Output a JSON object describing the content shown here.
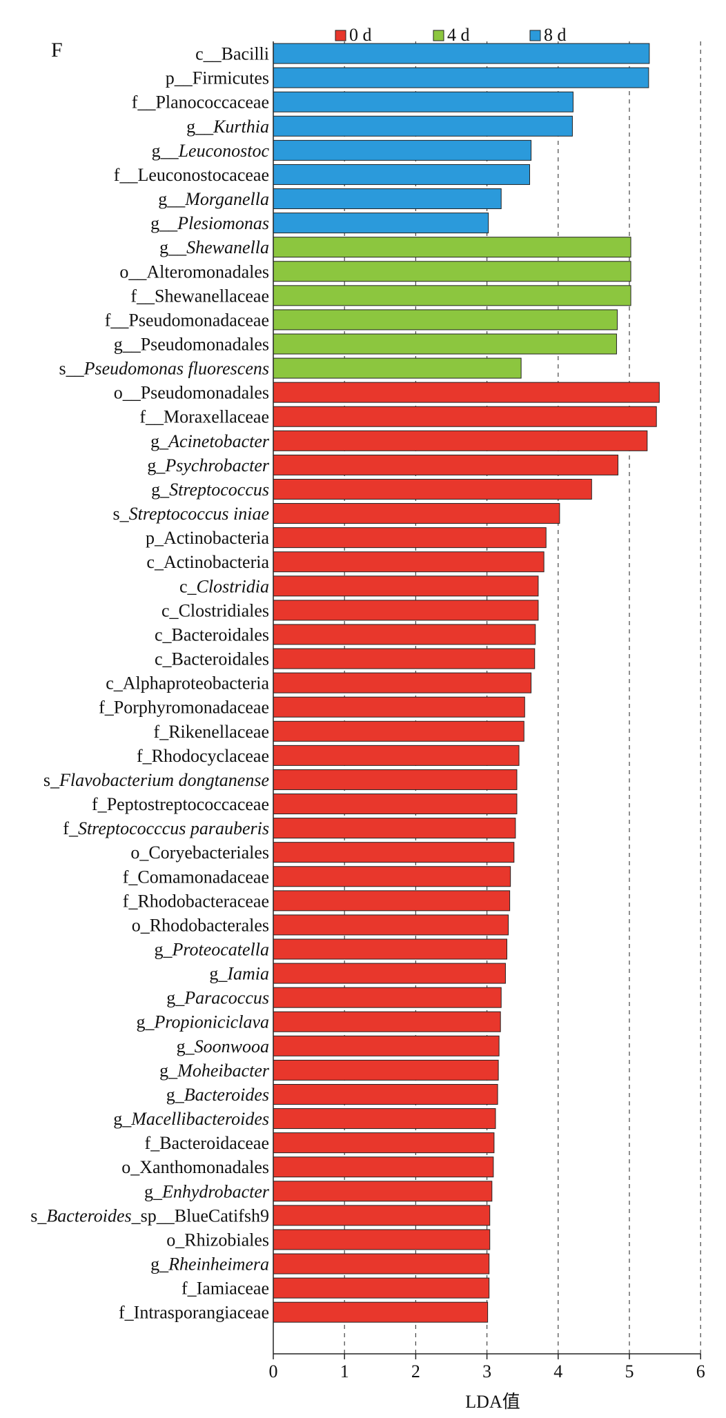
{
  "chart_data": {
    "type": "bar",
    "orientation": "horizontal",
    "panel_label": "F",
    "xlabel": "LDA值",
    "ylabel": "",
    "xlim": [
      0,
      6
    ],
    "xticks": [
      0,
      1,
      2,
      3,
      4,
      5,
      6
    ],
    "grid": "dashed vertical lines at x = 1..6",
    "legend": {
      "position": "top",
      "entries": [
        {
          "group": "0d",
          "label": "0 d",
          "color": "#E8372C"
        },
        {
          "group": "4d",
          "label": "4 d",
          "color": "#8CC63F"
        },
        {
          "group": "8d",
          "label": "8 d",
          "color": "#2B9ADB"
        }
      ]
    },
    "bars": [
      {
        "prefix": "c__",
        "name": "Bacilli",
        "italic": false,
        "value": 5.28,
        "group": "8d"
      },
      {
        "prefix": "p__",
        "name": "Firmicutes",
        "italic": false,
        "value": 5.27,
        "group": "8d"
      },
      {
        "prefix": "f__",
        "name": "Planococcaceae",
        "italic": false,
        "value": 4.21,
        "group": "8d"
      },
      {
        "prefix": "g__",
        "name": "Kurthia",
        "italic": true,
        "value": 4.2,
        "group": "8d"
      },
      {
        "prefix": "g__",
        "name": "Leuconostoc",
        "italic": true,
        "value": 3.62,
        "group": "8d"
      },
      {
        "prefix": "f__",
        "name": "Leuconostocaceae",
        "italic": false,
        "value": 3.6,
        "group": "8d"
      },
      {
        "prefix": "g__",
        "name": "Morganella",
        "italic": true,
        "value": 3.2,
        "group": "8d"
      },
      {
        "prefix": "g__",
        "name": "Plesiomonas",
        "italic": true,
        "value": 3.02,
        "group": "8d"
      },
      {
        "prefix": "g__",
        "name": "Shewanella",
        "italic": true,
        "value": 5.02,
        "group": "4d"
      },
      {
        "prefix": "o__",
        "name": "Alteromonadales",
        "italic": false,
        "value": 5.02,
        "group": "4d"
      },
      {
        "prefix": "f__",
        "name": "Shewanellaceae",
        "italic": false,
        "value": 5.02,
        "group": "4d"
      },
      {
        "prefix": "f__",
        "name": "Pseudomonadaceae",
        "italic": false,
        "value": 4.83,
        "group": "4d"
      },
      {
        "prefix": "g__",
        "name": "Pseudomonadales",
        "italic": false,
        "value": 4.82,
        "group": "4d"
      },
      {
        "prefix": "s__",
        "name": "Pseudomonas fluorescens",
        "italic": true,
        "value": 3.48,
        "group": "4d"
      },
      {
        "prefix": "o__",
        "name": "Pseudomonadales",
        "italic": false,
        "value": 5.42,
        "group": "0d"
      },
      {
        "prefix": "f__",
        "name": "Moraxellaceae",
        "italic": false,
        "value": 5.38,
        "group": "0d"
      },
      {
        "prefix": "g_",
        "name": "Acinetobacter",
        "italic": true,
        "value": 5.25,
        "group": "0d"
      },
      {
        "prefix": "g_",
        "name": "Psychrobacter",
        "italic": true,
        "value": 4.84,
        "group": "0d"
      },
      {
        "prefix": "g_",
        "name": "Streptococcus",
        "italic": true,
        "value": 4.47,
        "group": "0d"
      },
      {
        "prefix": "s_",
        "name": "Streptococcus iniae",
        "italic": true,
        "value": 4.02,
        "group": "0d"
      },
      {
        "prefix": "p_",
        "name": "Actinobacteria",
        "italic": false,
        "value": 3.83,
        "group": "0d"
      },
      {
        "prefix": "c_",
        "name": "Actinobacteria",
        "italic": false,
        "value": 3.8,
        "group": "0d"
      },
      {
        "prefix": "c_",
        "name": "Clostridia",
        "italic": true,
        "value": 3.72,
        "group": "0d"
      },
      {
        "prefix": "c_",
        "name": "Clostridiales",
        "italic": false,
        "value": 3.72,
        "group": "0d"
      },
      {
        "prefix": "c_",
        "name": "Bacteroidales",
        "italic": false,
        "value": 3.68,
        "group": "0d"
      },
      {
        "prefix": "c_",
        "name": "Bacteroidales",
        "italic": false,
        "value": 3.67,
        "group": "0d"
      },
      {
        "prefix": "c_",
        "name": "Alphaproteobacteria",
        "italic": false,
        "value": 3.62,
        "group": "0d"
      },
      {
        "prefix": "f_",
        "name": "Porphyromonadaceae",
        "italic": false,
        "value": 3.53,
        "group": "0d"
      },
      {
        "prefix": "f_",
        "name": "Rikenellaceae",
        "italic": false,
        "value": 3.52,
        "group": "0d"
      },
      {
        "prefix": "f_",
        "name": "Rhodocyclaceae",
        "italic": false,
        "value": 3.45,
        "group": "0d"
      },
      {
        "prefix": "s_",
        "name": "Flavobacterium dongtanense",
        "italic": true,
        "value": 3.42,
        "group": "0d"
      },
      {
        "prefix": "f_",
        "name": "Peptostreptococcaceae",
        "italic": false,
        "value": 3.42,
        "group": "0d"
      },
      {
        "prefix": "f_",
        "name": "Streptococccus parauberis",
        "italic": true,
        "value": 3.4,
        "group": "0d"
      },
      {
        "prefix": "o_",
        "name": "Coryebacteriales",
        "italic": false,
        "value": 3.38,
        "group": "0d"
      },
      {
        "prefix": "f_",
        "name": "Comamonadaceae",
        "italic": false,
        "value": 3.33,
        "group": "0d"
      },
      {
        "prefix": "f_",
        "name": "Rhodobacteraceae",
        "italic": false,
        "value": 3.32,
        "group": "0d"
      },
      {
        "prefix": "o_",
        "name": "Rhodobacterales",
        "italic": false,
        "value": 3.3,
        "group": "0d"
      },
      {
        "prefix": "g_",
        "name": "Proteocatella",
        "italic": true,
        "value": 3.28,
        "group": "0d"
      },
      {
        "prefix": "g_",
        "name": "Iamia",
        "italic": true,
        "value": 3.26,
        "group": "0d"
      },
      {
        "prefix": "g_",
        "name": "Paracoccus",
        "italic": true,
        "value": 3.2,
        "group": "0d"
      },
      {
        "prefix": "g_",
        "name": "Propioniciclava",
        "italic": true,
        "value": 3.19,
        "group": "0d"
      },
      {
        "prefix": "g_",
        "name": "Soonwooa",
        "italic": true,
        "value": 3.17,
        "group": "0d"
      },
      {
        "prefix": "g_",
        "name": "Moheibacter",
        "italic": true,
        "value": 3.16,
        "group": "0d"
      },
      {
        "prefix": "g_",
        "name": "Bacteroides",
        "italic": true,
        "value": 3.15,
        "group": "0d"
      },
      {
        "prefix": "g_",
        "name": "Macellibacteroides",
        "italic": true,
        "value": 3.12,
        "group": "0d"
      },
      {
        "prefix": "f_",
        "name": "Bacteroidaceae",
        "italic": false,
        "value": 3.1,
        "group": "0d"
      },
      {
        "prefix": "o_",
        "name": "Xanthomonadales",
        "italic": false,
        "value": 3.09,
        "group": "0d"
      },
      {
        "prefix": "g_",
        "name": "Enhydrobacter",
        "italic": true,
        "value": 3.07,
        "group": "0d"
      },
      {
        "prefix": "s_",
        "name": "Bacteroides",
        "italic": true,
        "suffix": "sp__BlueCatifsh9",
        "value": 3.04,
        "group": "0d"
      },
      {
        "prefix": "o_",
        "name": "Rhizobiales",
        "italic": false,
        "value": 3.04,
        "group": "0d"
      },
      {
        "prefix": "g_",
        "name": "Rheinheimera",
        "italic": true,
        "value": 3.03,
        "group": "0d"
      },
      {
        "prefix": "f_",
        "name": "Iamiaceae",
        "italic": false,
        "value": 3.03,
        "group": "0d"
      },
      {
        "prefix": "f_",
        "name": "Intrasporangiaceae",
        "italic": false,
        "value": 3.01,
        "group": "0d"
      }
    ]
  }
}
